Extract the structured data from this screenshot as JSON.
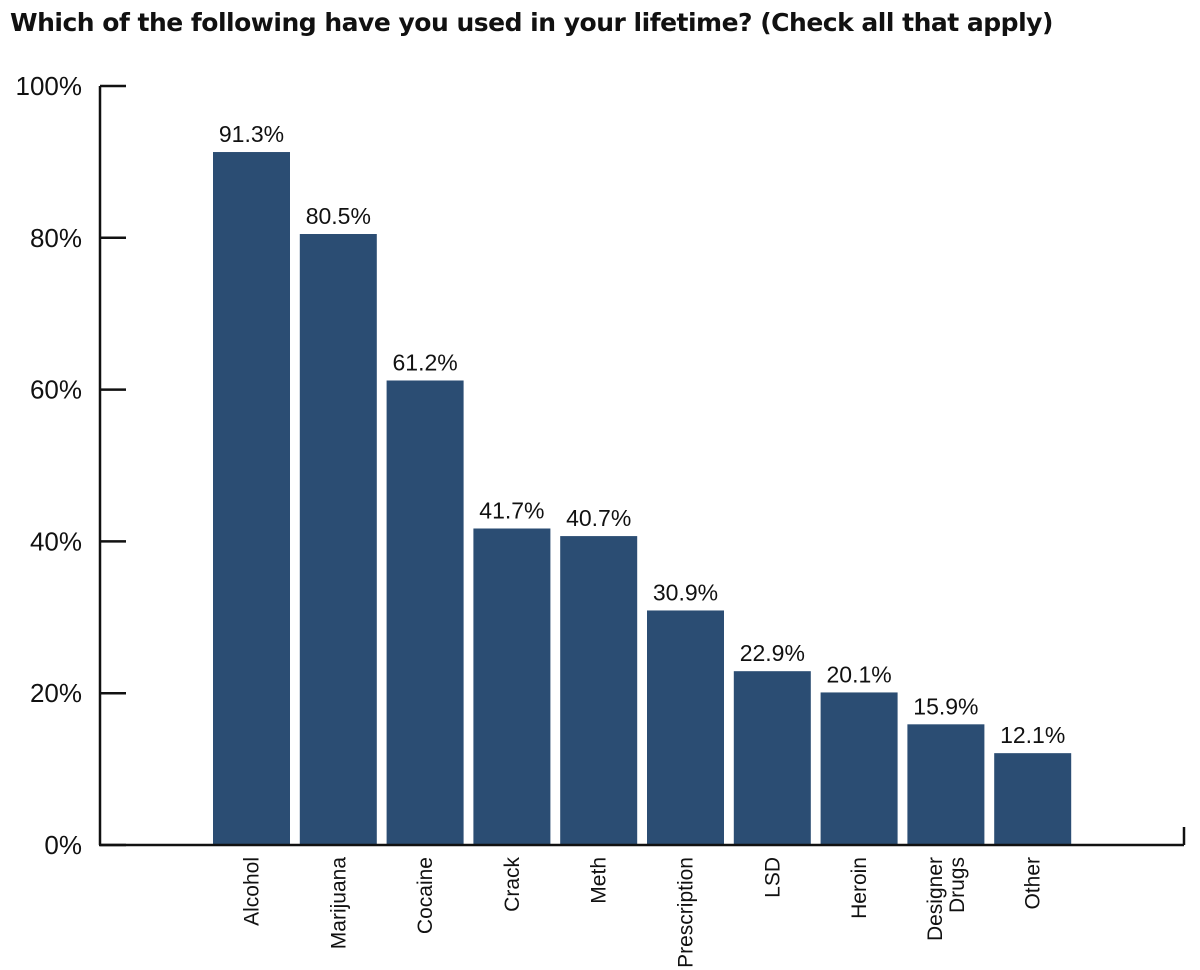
{
  "chart_data": {
    "type": "bar",
    "title": "Which of the following have you used in your lifetime? (Check all that apply)",
    "categories": [
      [
        "Alcohol"
      ],
      [
        "Marijuana"
      ],
      [
        "Cocaine"
      ],
      [
        "Crack"
      ],
      [
        "Meth"
      ],
      [
        "Prescription"
      ],
      [
        "LSD"
      ],
      [
        "Heroin"
      ],
      [
        "Designer",
        "Drugs"
      ],
      [
        "Other"
      ]
    ],
    "values": [
      91.3,
      80.5,
      61.2,
      41.7,
      40.7,
      30.9,
      22.9,
      20.1,
      15.9,
      12.1
    ],
    "value_labels": [
      "91.3%",
      "80.5%",
      "61.2%",
      "41.7%",
      "40.7%",
      "30.9%",
      "22.9%",
      "20.1%",
      "15.9%",
      "12.1%"
    ],
    "yticks": [
      0,
      20,
      40,
      60,
      80,
      100
    ],
    "ytick_labels": [
      "0%",
      "20%",
      "40%",
      "60%",
      "80%",
      "100%"
    ],
    "ylim": [
      0,
      100
    ],
    "xlabel": "",
    "ylabel": "",
    "bar_color": "#2b4d73",
    "grid": false
  }
}
